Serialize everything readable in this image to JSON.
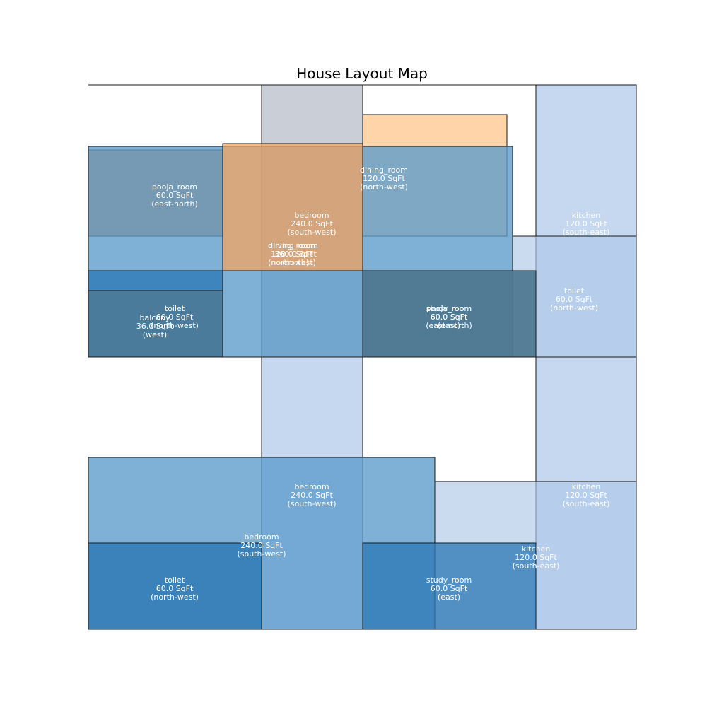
{
  "title": "House Layout Map",
  "colors": {
    "blue": "#5b9bcc",
    "dark_blue": "#2a77b4",
    "slate": "#4f7891",
    "light_blue": "#aec7e8",
    "orange": "#cd853f",
    "light_orange": "#f4a460",
    "peach": "#ffcc99",
    "gray": "#b8bec9",
    "outline": "#1a1a1a"
  },
  "rooms": [
    {
      "name": "pooja_room",
      "area": "60.0 SqFt",
      "direction": "(east-north)",
      "color": "orange"
    },
    {
      "name": "dining_room",
      "area": "120.0 SqFt",
      "direction": "(north-west)",
      "color": "peach"
    },
    {
      "name": "bedroom",
      "area": "240.0 SqFt",
      "direction": "(south-west)",
      "color": "gray"
    },
    {
      "name": "living_room",
      "area": "360.0 SqFt",
      "direction": "(north)",
      "color": "blue"
    },
    {
      "name": "dining_room",
      "area": "120.0 SqFt",
      "direction": "(north-west)",
      "color": "light_orange"
    },
    {
      "name": "kitchen",
      "area": "120.0 SqFt",
      "direction": "(south-east)",
      "color": "light_blue"
    },
    {
      "name": "toilet",
      "area": "60.0 SqFt",
      "direction": "(north-west)",
      "color": "light_blue"
    },
    {
      "name": "toilet",
      "area": "60.0 SqFt",
      "direction": "(north-west)",
      "color": "dark_blue"
    },
    {
      "name": "balcony",
      "area": "36.0 SqFt",
      "direction": "(west)",
      "color": "slate"
    },
    {
      "name": "pooja_room",
      "area": "60.0 SqFt",
      "direction": "(east-north)",
      "color": "slate"
    },
    {
      "name": "study_room",
      "area": "60.0 SqFt",
      "direction": "(east)",
      "color": "slate"
    },
    {
      "name": "bedroom",
      "area": "240.0 SqFt",
      "direction": "(south-west)",
      "color": "light_blue"
    },
    {
      "name": "bedroom",
      "area": "240.0 SqFt",
      "direction": "(south-west)",
      "color": "blue"
    },
    {
      "name": "kitchen",
      "area": "120.0 SqFt",
      "direction": "(south-east)",
      "color": "light_blue"
    },
    {
      "name": "kitchen",
      "area": "120.0 SqFt",
      "direction": "(south-east)",
      "color": "light_blue"
    },
    {
      "name": "toilet",
      "area": "60.0 SqFt",
      "direction": "(north-west)",
      "color": "dark_blue"
    },
    {
      "name": "study_room",
      "area": "60.0 SqFt",
      "direction": "(east)",
      "color": "dark_blue"
    }
  ]
}
